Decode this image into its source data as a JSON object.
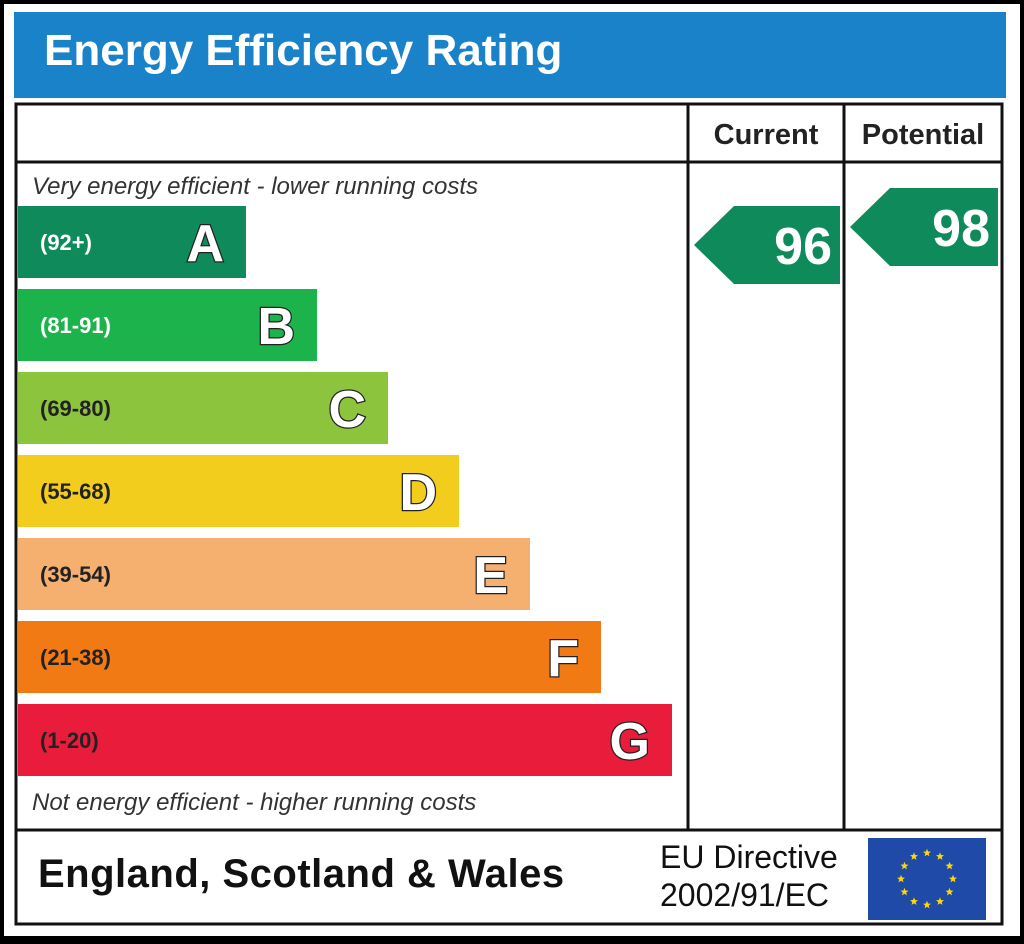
{
  "title": "Energy Efficiency Rating",
  "columns": {
    "current": "Current",
    "potential": "Potential"
  },
  "notes": {
    "top": "Very energy efficient - lower running costs",
    "bottom": "Not energy efficient - higher running costs"
  },
  "footer": {
    "country": "England, Scotland & Wales",
    "directive_line1": "EU Directive",
    "directive_line2": "2002/91/EC",
    "flag_icon": "eu-flag-icon"
  },
  "chart_data": {
    "type": "bar",
    "categories": [
      "A",
      "B",
      "C",
      "D",
      "E",
      "F",
      "G"
    ],
    "ranges": [
      "(92+)",
      "(81-91)",
      "(69-80)",
      "(55-68)",
      "(39-54)",
      "(21-38)",
      "(1-20)"
    ],
    "min_values": [
      92,
      81,
      69,
      55,
      39,
      21,
      1
    ],
    "colors": [
      "#0f8a5a",
      "#1db34c",
      "#8dc43d",
      "#f3cd1d",
      "#f5b06f",
      "#f17a14",
      "#ea1c3b"
    ],
    "current": {
      "value": 96,
      "band": "A",
      "color": "#0f8a5a"
    },
    "potential": {
      "value": 98,
      "band": "A",
      "color": "#0f8a5a"
    }
  }
}
